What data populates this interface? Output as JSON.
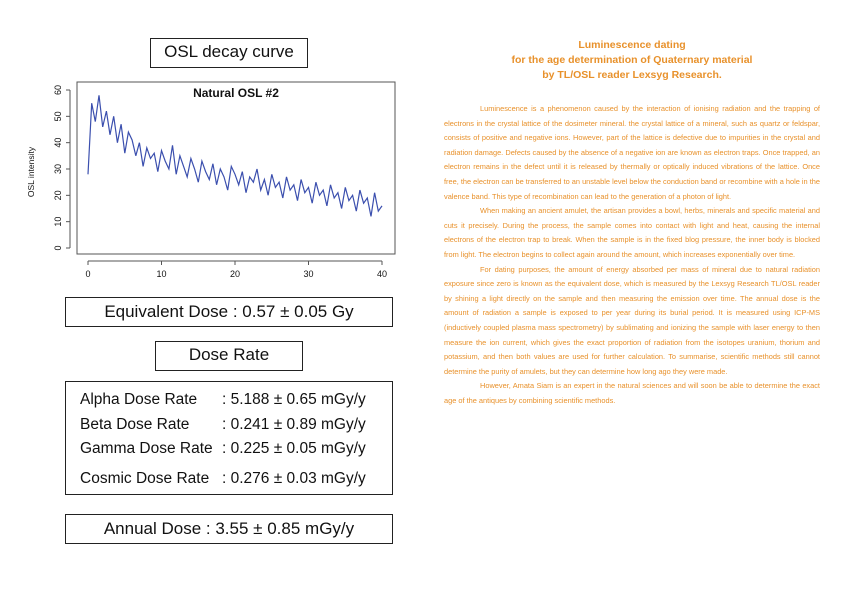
{
  "left": {
    "osl_title": "OSL decay curve",
    "equivalent_dose": "Equivalent Dose : 0.57 ± 0.05 Gy",
    "dose_rate_title": "Dose Rate",
    "dose_rates": [
      {
        "label": "Alpha Dose Rate",
        "value": ": 5.188 ± 0.65 mGy/y"
      },
      {
        "label": "Beta Dose Rate",
        "value": ": 0.241 ± 0.89 mGy/y"
      },
      {
        "label": "Gamma Dose Rate",
        "value": ": 0.225 ± 0.05 mGy/y"
      },
      {
        "label": "Cosmic Dose Rate",
        "value": ": 0.276 ± 0.03 mGy/y"
      }
    ],
    "annual_dose": "Annual Dose : 3.55 ± 0.85 mGy/y"
  },
  "chart_data": {
    "type": "line",
    "title": "Natural OSL #2",
    "xlabel": "",
    "ylabel": "OSL intensity",
    "xlim": [
      0,
      40
    ],
    "ylim": [
      0,
      60
    ],
    "x_ticks": [
      "0",
      "10",
      "20",
      "30",
      "40"
    ],
    "y_ticks": [
      "0",
      "10",
      "20",
      "30",
      "40",
      "50",
      "60"
    ],
    "grid": false,
    "color": "#3b4fae",
    "series": [
      {
        "x": [
          0,
          0.5,
          1,
          1.5,
          2,
          2.5,
          3,
          3.5,
          4,
          4.5,
          5,
          5.5,
          6,
          6.5,
          7,
          7.5,
          8,
          8.5,
          9,
          9.5,
          10,
          10.5,
          11,
          11.5,
          12,
          12.5,
          13,
          13.5,
          14,
          14.5,
          15,
          15.5,
          16,
          16.5,
          17,
          17.5,
          18,
          18.5,
          19,
          19.5,
          20,
          20.5,
          21,
          21.5,
          22,
          22.5,
          23,
          23.5,
          24,
          24.5,
          25,
          25.5,
          26,
          26.5,
          27,
          27.5,
          28,
          28.5,
          29,
          29.5,
          30,
          30.5,
          31,
          31.5,
          32,
          32.5,
          33,
          33.5,
          34,
          34.5,
          35,
          35.5,
          36,
          36.5,
          37,
          37.5,
          38,
          38.5,
          39,
          39.5,
          40
        ],
        "values": [
          28,
          55,
          48,
          58,
          46,
          52,
          43,
          50,
          40,
          47,
          36,
          44,
          41,
          35,
          40,
          31,
          38,
          34,
          36,
          29,
          37,
          33,
          30,
          39,
          28,
          35,
          31,
          27,
          34,
          30,
          25,
          33,
          29,
          26,
          32,
          24,
          30,
          27,
          22,
          31,
          28,
          24,
          29,
          21,
          27,
          25,
          30,
          22,
          26,
          20,
          28,
          23,
          25,
          19,
          27,
          22,
          24,
          18,
          26,
          21,
          23,
          17,
          25,
          20,
          22,
          16,
          24,
          19,
          21,
          15,
          23,
          18,
          20,
          14,
          22,
          17,
          19,
          12,
          21,
          14,
          16
        ]
      }
    ]
  },
  "right": {
    "heading_lines": [
      "Luminescence dating",
      "for the age determination of Quaternary material",
      "by TL/OSL reader Lexsyg Research."
    ],
    "paragraphs": [
      "Luminescence is a phenomenon caused by the interaction of ionising radiation and the trapping of electrons in the crystal lattice of the dosimeter mineral. the crystal lattice of a mineral, such as quartz or feldspar, consists of positive and negative ions. However, part of the lattice is defective due to impurities in the crystal and radiation damage. Defects caused by the absence of a negative ion are known as electron traps. Once trapped, an electron remains in the defect until it is released by thermally or optically induced vibrations of the lattice. Once free, the electron can be transferred to an unstable level below the conduction band or recombine with a hole in the valence band. This type of recombination can lead to the generation of a photon of light.",
      "When making an ancient amulet, the artisan provides a bowl, herbs, minerals and specific material and cuts it precisely. During the process, the sample comes into contact with light and heat, causing the internal electrons of the electron trap to break. When the sample is in the fixed blog pressure, the inner body is blocked from light. The electron begins to collect again around the amount, which increases exponentially over time.",
      "For dating purposes, the amount of energy absorbed per mass of mineral due to natural radiation exposure since zero is known as the equivalent dose, which is measured by the Lexsyg Research TL/OSL reader by shining a light directly on the sample and then measuring the emission over time. The annual dose is the amount of radiation a sample is exposed to per year during its burial period. It is measured using ICP-MS (inductively coupled plasma mass spectrometry) by sublimating and ionizing the sample with laser energy to then measure the ion current, which gives the exact proportion of radiation from the isotopes uranium, thorium and potassium, and then both values are used for further calculation. To summarise, scientific methods still cannot determine the purity of amulets, but they can determine how long ago they were made.",
      "However, Amata Siam is an expert in the natural sciences and will soon be able to determine the exact age of the antiques by combining scientific methods."
    ]
  }
}
